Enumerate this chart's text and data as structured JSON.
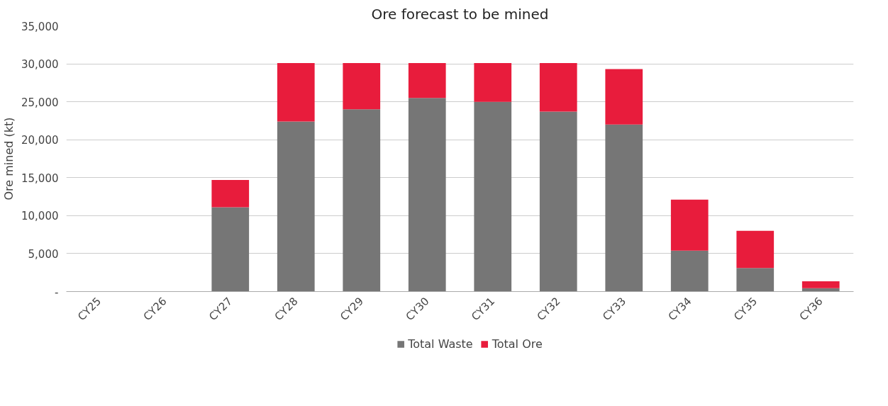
{
  "chart_data": {
    "type": "bar",
    "title": "Ore forecast to be mined",
    "ylabel": "Ore mined (kt)",
    "stacked": true,
    "categories": [
      "CY25",
      "CY26",
      "CY27",
      "CY28",
      "CY29",
      "CY30",
      "CY31",
      "CY32",
      "CY33",
      "CY34",
      "CY35",
      "CY36"
    ],
    "series": [
      {
        "name": "Total Waste",
        "color": "#767676",
        "values": [
          0,
          0,
          11100,
          22400,
          24000,
          25500,
          25000,
          23700,
          22000,
          5400,
          3100,
          450
        ]
      },
      {
        "name": "Total Ore",
        "color": "#e81c3c",
        "values": [
          0,
          0,
          3600,
          7700,
          6100,
          4600,
          5100,
          6400,
          7300,
          6700,
          4900,
          900
        ]
      }
    ],
    "ylim": [
      0,
      35000
    ],
    "yticks": [
      {
        "value": 0,
        "label": "-"
      },
      {
        "value": 5000,
        "label": "5,000"
      },
      {
        "value": 10000,
        "label": "10,000"
      },
      {
        "value": 15000,
        "label": "15,000"
      },
      {
        "value": 20000,
        "label": "20,000"
      },
      {
        "value": 25000,
        "label": "25,000"
      },
      {
        "value": 30000,
        "label": "30,000"
      },
      {
        "value": 35000,
        "label": "35,000"
      }
    ],
    "grid": "y",
    "legend": "bottom"
  }
}
